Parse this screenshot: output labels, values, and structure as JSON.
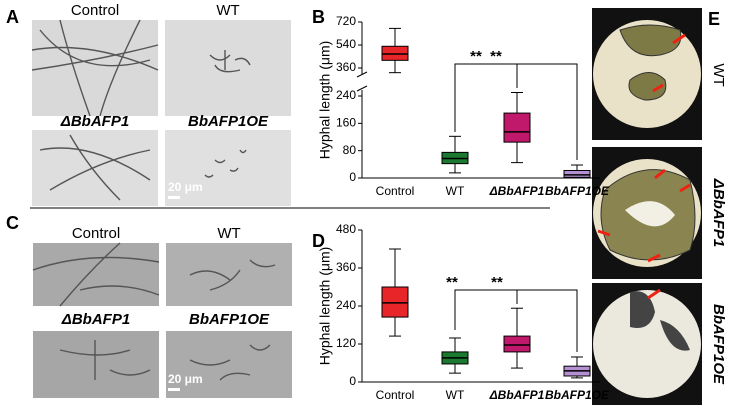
{
  "panels": {
    "A": {
      "letter": "A",
      "labels": [
        "Control",
        "WT",
        "ΔBbAFP1",
        "BbAFP1OE"
      ],
      "scale_bar": "20 μm"
    },
    "B": {
      "letter": "B"
    },
    "C": {
      "letter": "C",
      "labels": [
        "Control",
        "WT",
        "ΔBbAFP1",
        "BbAFP1OE"
      ],
      "scale_bar": "20 μm"
    },
    "D": {
      "letter": "D"
    },
    "E": {
      "letter": "E",
      "labels": [
        "WT",
        "ΔBbAFP1",
        "BbAFP1OE"
      ]
    }
  },
  "chart_data": [
    {
      "type": "box",
      "y_label": "Hyphal length (μm)",
      "categories": [
        "Control",
        "WT",
        "ΔBbAFP1",
        "BbAFP1OE"
      ],
      "colors": [
        "#e8262a",
        "#1b7a2f",
        "#c0186a",
        "#b48fd1"
      ],
      "min": [
        340,
        15,
        45,
        0
      ],
      "q1": [
        420,
        42,
        105,
        2
      ],
      "median": [
        470,
        57,
        135,
        9
      ],
      "q3": [
        530,
        75,
        190,
        22
      ],
      "max": [
        670,
        122,
        255,
        38
      ],
      "ylim": [
        0,
        720
      ],
      "ybreak": [
        240,
        360
      ],
      "yticks": [
        0,
        80,
        160,
        240,
        360,
        540,
        720
      ],
      "annotations": [
        "**",
        "**"
      ]
    },
    {
      "type": "box",
      "y_label": "Hyphal length (μm)",
      "categories": [
        "Control",
        "WT",
        "ΔBbAFP1",
        "BbAFP1OE"
      ],
      "colors": [
        "#e8262a",
        "#1b7a2f",
        "#c0186a",
        "#b48fd1"
      ],
      "min": [
        145,
        28,
        44,
        13
      ],
      "q1": [
        205,
        57,
        95,
        19
      ],
      "median": [
        250,
        76,
        117,
        35
      ],
      "q3": [
        300,
        95,
        145,
        50
      ],
      "max": [
        420,
        139,
        233,
        79
      ],
      "ylim": [
        0,
        480
      ],
      "yticks": [
        0,
        120,
        240,
        360,
        480
      ],
      "annotations": [
        "**",
        "**"
      ]
    }
  ]
}
